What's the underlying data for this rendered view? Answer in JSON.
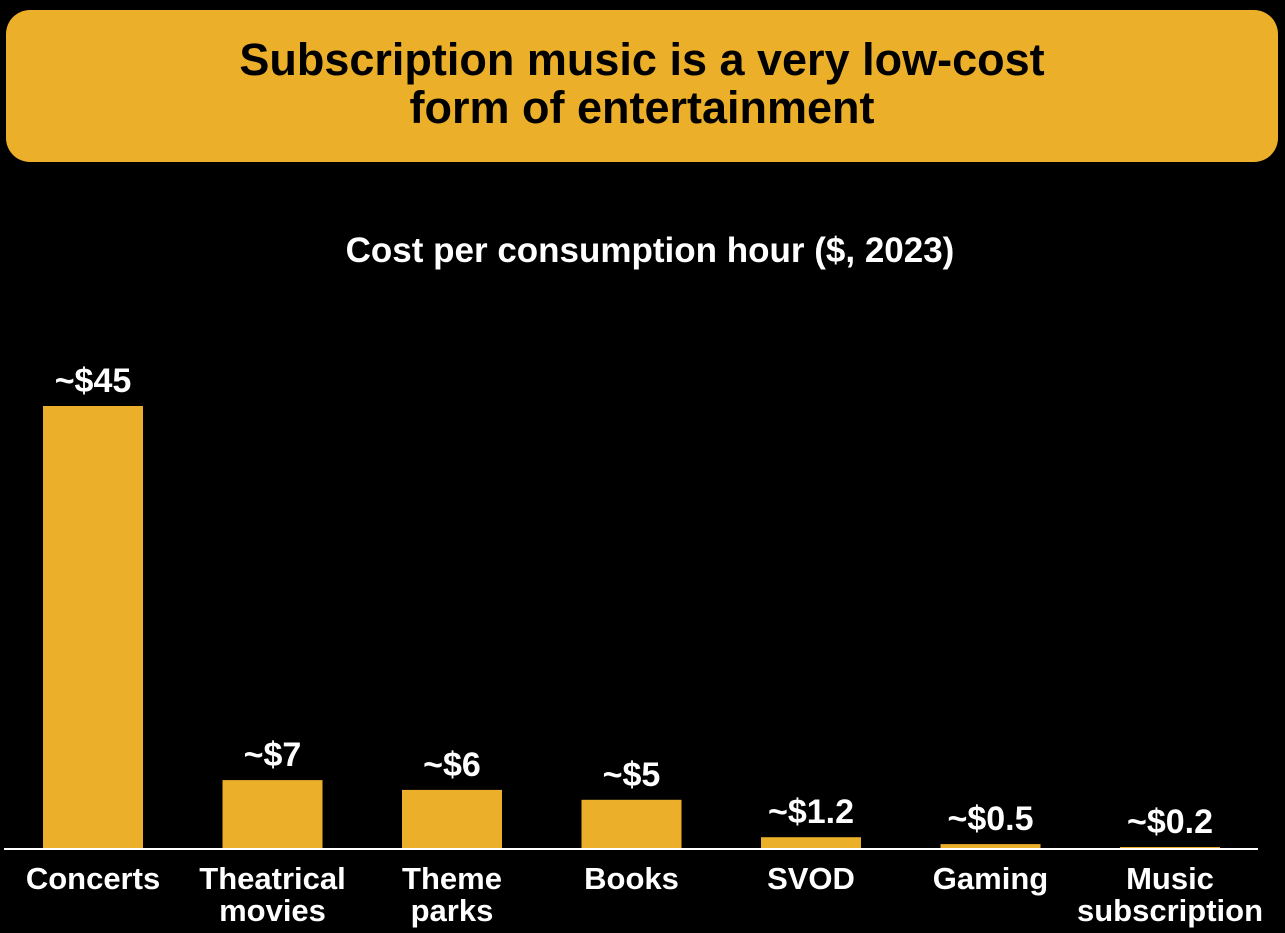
{
  "header": {
    "title_lines": [
      "Subscription music is a very low-cost",
      "form of entertainment"
    ]
  },
  "colors": {
    "accent": "#EBAF2A",
    "background": "#000000",
    "text": "#ffffff",
    "title_text": "#000000"
  },
  "chart_data": {
    "type": "bar",
    "title": "Cost per consumption hour ($, 2023)",
    "categories": [
      [
        "Concerts"
      ],
      [
        "Theatrical",
        "movies"
      ],
      [
        "Theme",
        "parks"
      ],
      [
        "Books"
      ],
      [
        "SVOD"
      ],
      [
        "Gaming"
      ],
      [
        "Music",
        "subscription"
      ]
    ],
    "values": [
      45,
      7,
      6,
      5,
      1.2,
      0.5,
      0.2
    ],
    "data_labels": [
      "~$45",
      "~$7",
      "~$6",
      "~$5",
      "~$1.2",
      "~$0.5",
      "~$0.2"
    ],
    "xlabel": "",
    "ylabel": "",
    "ylim": [
      0,
      45
    ],
    "grid": false,
    "legend": "none"
  }
}
